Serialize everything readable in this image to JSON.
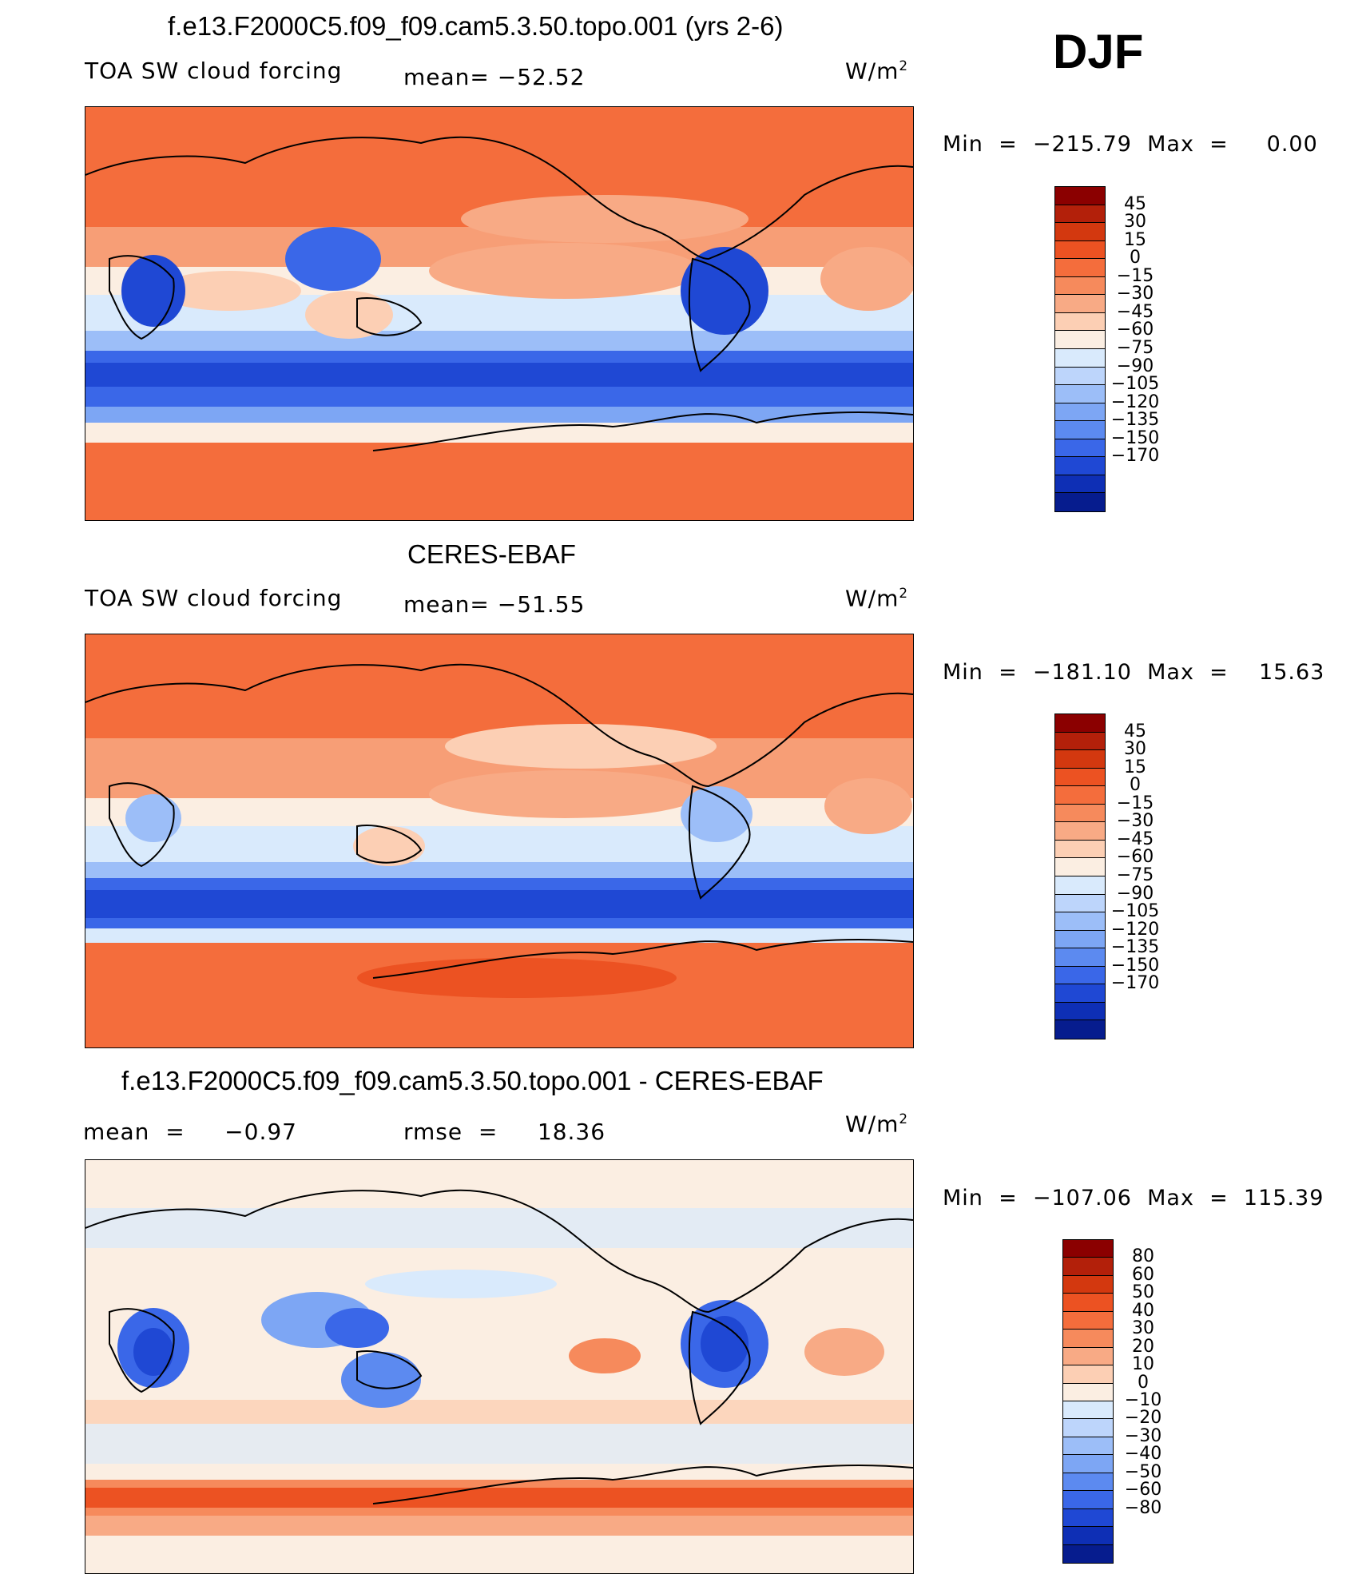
{
  "season": "DJF",
  "units_symbol": "W/m",
  "units_exp": "2",
  "panels": [
    {
      "title": "f.e13.F2000C5.f09_f09.cam5.3.50.topo.001 (yrs 2-6)",
      "left_label": "TOA SW cloud forcing",
      "mean_text": "mean= −52.52",
      "min_text": "Min  =  −215.79  Max  =     0.00",
      "colorbar_levels": [
        "45",
        "30",
        "15",
        "0",
        "−15",
        "−30",
        "−45",
        "−60",
        "−75",
        "−90",
        "−105",
        "−120",
        "−135",
        "−150",
        "−170"
      ],
      "colorbar_colors": [
        "#8b0000",
        "#b3200a",
        "#d3380f",
        "#ec5222",
        "#f46d3c",
        "#f68a5c",
        "#f8aa85",
        "#fccfb4",
        "#fbeee2",
        "#d9eafc",
        "#bdd5fb",
        "#9cbef8",
        "#7da6f4",
        "#5c8af0",
        "#3a67e8",
        "#1f48d4",
        "#0e2fb5",
        "#061c8e"
      ]
    },
    {
      "title": "CERES-EBAF",
      "left_label": "TOA SW cloud forcing",
      "mean_text": "mean= −51.55",
      "min_text": "Min  =  −181.10  Max  =    15.63",
      "colorbar_levels": [
        "45",
        "30",
        "15",
        "0",
        "−15",
        "−30",
        "−45",
        "−60",
        "−75",
        "−90",
        "−105",
        "−120",
        "−135",
        "−150",
        "−170"
      ],
      "colorbar_colors": [
        "#8b0000",
        "#b3200a",
        "#d3380f",
        "#ec5222",
        "#f46d3c",
        "#f68a5c",
        "#f8aa85",
        "#fccfb4",
        "#fbeee2",
        "#d9eafc",
        "#bdd5fb",
        "#9cbef8",
        "#7da6f4",
        "#5c8af0",
        "#3a67e8",
        "#1f48d4",
        "#0e2fb5",
        "#061c8e"
      ]
    },
    {
      "title": "f.e13.F2000C5.f09_f09.cam5.3.50.topo.001 - CERES-EBAF",
      "left_label": "mean  =     −0.97",
      "mean_text": "rmse  =     18.36",
      "min_text": "Min  =  −107.06  Max  =  115.39",
      "colorbar_levels": [
        "80",
        "60",
        "50",
        "40",
        "30",
        "20",
        "10",
        "0",
        "−10",
        "−20",
        "−30",
        "−40",
        "−50",
        "−60",
        "−80"
      ],
      "colorbar_colors": [
        "#8b0000",
        "#b3200a",
        "#d3380f",
        "#ec5222",
        "#f46d3c",
        "#f68a5c",
        "#f8aa85",
        "#fccfb4",
        "#fbeee2",
        "#d9eafc",
        "#bdd5fb",
        "#9cbef8",
        "#7da6f4",
        "#5c8af0",
        "#3a67e8",
        "#1f48d4",
        "#0e2fb5",
        "#061c8e"
      ]
    }
  ],
  "chart_data": [
    {
      "type": "heatmap",
      "title": "f.e13.F2000C5.f09_f09.cam5.3.50.topo.001 (yrs 2-6)",
      "variable": "TOA SW cloud forcing",
      "season": "DJF",
      "units": "W/m2",
      "mean": -52.52,
      "min": -215.79,
      "max": 0.0,
      "contour_levels": [
        45,
        30,
        15,
        0,
        -15,
        -30,
        -45,
        -60,
        -75,
        -90,
        -105,
        -120,
        -135,
        -150,
        -170
      ]
    },
    {
      "type": "heatmap",
      "title": "CERES-EBAF",
      "variable": "TOA SW cloud forcing",
      "season": "DJF",
      "units": "W/m2",
      "mean": -51.55,
      "min": -181.1,
      "max": 15.63,
      "contour_levels": [
        45,
        30,
        15,
        0,
        -15,
        -30,
        -45,
        -60,
        -75,
        -90,
        -105,
        -120,
        -135,
        -150,
        -170
      ]
    },
    {
      "type": "heatmap",
      "title": "f.e13.F2000C5.f09_f09.cam5.3.50.topo.001 - CERES-EBAF",
      "variable": "TOA SW cloud forcing difference",
      "season": "DJF",
      "units": "W/m2",
      "mean": -0.97,
      "rmse": 18.36,
      "min": -107.06,
      "max": 115.39,
      "contour_levels": [
        80,
        60,
        50,
        40,
        30,
        20,
        10,
        0,
        -10,
        -20,
        -30,
        -40,
        -50,
        -60,
        -80
      ]
    }
  ]
}
